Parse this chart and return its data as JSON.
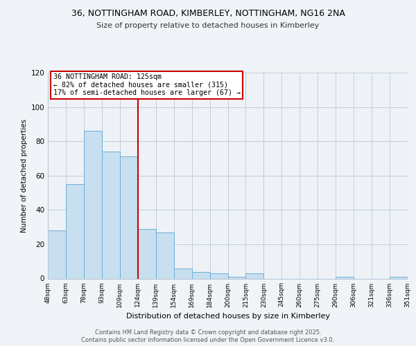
{
  "title1": "36, NOTTINGHAM ROAD, KIMBERLEY, NOTTINGHAM, NG16 2NA",
  "title2": "Size of property relative to detached houses in Kimberley",
  "xlabel": "Distribution of detached houses by size in Kimberley",
  "ylabel": "Number of detached properties",
  "bar_values": [
    28,
    55,
    86,
    74,
    71,
    29,
    27,
    6,
    4,
    3,
    1,
    3,
    0,
    0,
    0,
    0,
    1,
    0,
    0,
    1
  ],
  "bin_labels": [
    "48sqm",
    "63sqm",
    "78sqm",
    "93sqm",
    "109sqm",
    "124sqm",
    "139sqm",
    "154sqm",
    "169sqm",
    "184sqm",
    "200sqm",
    "215sqm",
    "230sqm",
    "245sqm",
    "260sqm",
    "275sqm",
    "290sqm",
    "306sqm",
    "321sqm",
    "336sqm",
    "351sqm"
  ],
  "bar_color": "#c8dff0",
  "bar_edge_color": "#6baed6",
  "vline_color": "#cc0000",
  "annotation_text": "36 NOTTINGHAM ROAD: 125sqm\n← 82% of detached houses are smaller (315)\n17% of semi-detached houses are larger (67) →",
  "ylim": [
    0,
    120
  ],
  "yticks": [
    0,
    20,
    40,
    60,
    80,
    100,
    120
  ],
  "footer1": "Contains HM Land Registry data © Crown copyright and database right 2025.",
  "footer2": "Contains public sector information licensed under the Open Government Licence v3.0.",
  "bg_color": "#f0f4f8",
  "plot_bg_color": "#eef2f7"
}
